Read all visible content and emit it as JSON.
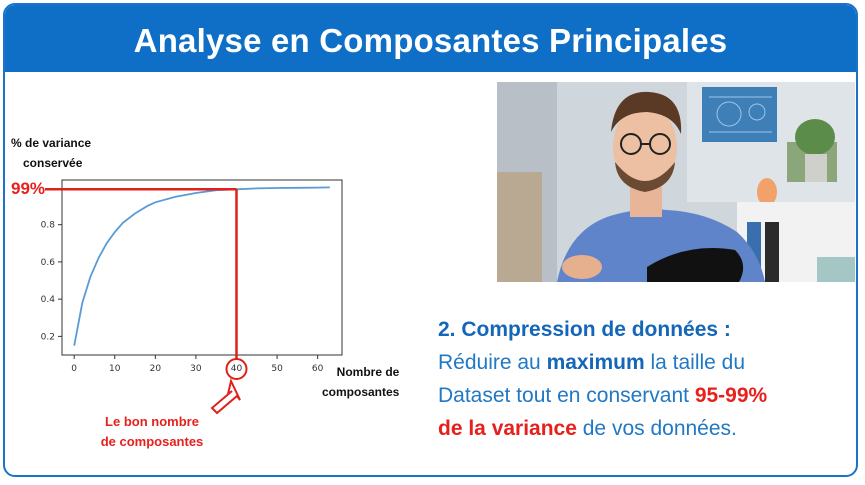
{
  "header": {
    "title": "Analyse en Composantes Principales"
  },
  "chart": {
    "y_label_line1": "% de variance",
    "y_label_line2": "conservée",
    "marker_99": "99%",
    "x_label_line1": "Nombre de",
    "x_label_line2": "composantes",
    "annotation_line1": "Le bon nombre",
    "annotation_line2": "de composantes",
    "highlight_x": 40,
    "highlight_y": 0.99
  },
  "chart_data": {
    "type": "line",
    "x": [
      0,
      2,
      4,
      6,
      8,
      10,
      12,
      15,
      18,
      20,
      25,
      30,
      35,
      40,
      45,
      50,
      55,
      60,
      63
    ],
    "series": [
      {
        "values": [
          0.15,
          0.38,
          0.52,
          0.62,
          0.7,
          0.76,
          0.81,
          0.86,
          0.9,
          0.92,
          0.95,
          0.97,
          0.985,
          0.99,
          0.995,
          0.997,
          0.998,
          0.999,
          1.0
        ]
      }
    ],
    "xticks": [
      "0",
      "10",
      "20",
      "30",
      "40",
      "50",
      "60"
    ],
    "yticks": [
      "0.2",
      "0.4",
      "0.6",
      "0.8"
    ],
    "xlim": [
      -3,
      66
    ],
    "ylim": [
      0.1,
      1.04
    ],
    "grid": false,
    "colors": {
      "line": "#5a9bd4",
      "highlight": "#e0201a"
    }
  },
  "text": {
    "heading": "2.  Compression de données :",
    "line2_pre": "Réduire au ",
    "line2_bold": "maximum",
    "line2_post": " la taille du",
    "line3_pre": "Dataset tout en conservant ",
    "line3_red": "95-99%",
    "line4_red": "de la variance",
    "line4_post": " de vos données."
  },
  "colors": {
    "accent": "#0f6fc6",
    "red": "#e8201c",
    "text_blue": "#2178c4"
  }
}
